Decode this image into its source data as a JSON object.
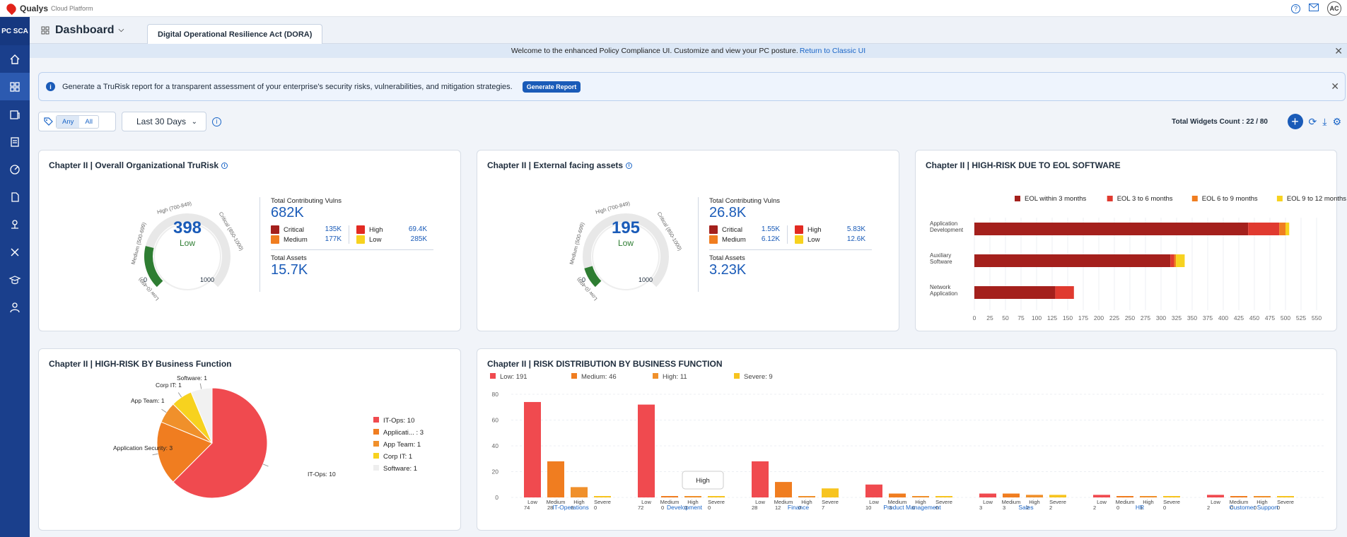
{
  "topbar": {
    "brand": "Qualys",
    "sub": "Cloud Platform",
    "avatar": "AC"
  },
  "sidebar": {
    "product": "PC SCA",
    "nav_icons": [
      "home-icon",
      "dashboard-icon",
      "assets-icon",
      "reports-icon",
      "scans-icon",
      "policies-icon",
      "network-icon",
      "tools-icon",
      "learning-icon",
      "user-icon"
    ]
  },
  "header": {
    "title": "Dashboard",
    "tab": "Digital Operational Resilience Act (DORA)"
  },
  "banner": {
    "text": "Welcome to the enhanced Policy Compliance UI. Customize and view your PC posture.",
    "link": "Return to Classic UI"
  },
  "info": {
    "text": "Generate a TruRisk report for a transparent assessment of your enterprise's security risks, vulnerabilities, and mitigation strategies.",
    "button": "Generate Report"
  },
  "filters": {
    "any": "Any",
    "all": "All",
    "range": "Last 30 Days"
  },
  "widgets": {
    "count_label": "Total Widgets Count : 22 / 80"
  },
  "colors": {
    "critical": "#a4201c",
    "high": "#e22a22",
    "medium": "#f07d20",
    "low": "#f7d21f",
    "severe": "#f7c41f",
    "lowrisk": "#f04a4f"
  },
  "card1": {
    "title": "Chapter II | Overall Organizational TruRisk",
    "score": "398",
    "score_label": "Low",
    "gauge_min": "0",
    "gauge_max": "1000",
    "score_fraction": 0.398,
    "arc_labels": {
      "low": "Low (0-499)",
      "medium": "Medium (500-699)",
      "high": "High (700-849)",
      "critical": "Critical (850-1000)"
    },
    "vulns_label": "Total Contributing Vulns",
    "vulns": "682K",
    "rows": [
      {
        "name": "Critical",
        "value": "135K"
      },
      {
        "name": "High",
        "value": "69.4K"
      },
      {
        "name": "Medium",
        "value": "177K"
      },
      {
        "name": "Low",
        "value": "285K"
      }
    ],
    "assets_label": "Total Assets",
    "assets": "15.7K"
  },
  "card2": {
    "title": "Chapter II | External facing assets",
    "score": "195",
    "score_label": "Low",
    "gauge_min": "0",
    "gauge_max": "1000",
    "score_fraction": 0.195,
    "arc_labels": {
      "low": "Low (0-499)",
      "medium": "Medium (500-699)",
      "high": "High (700-849)",
      "critical": "Critical (850-1000)"
    },
    "vulns_label": "Total Contributing Vulns",
    "vulns": "26.8K",
    "rows": [
      {
        "name": "Critical",
        "value": "1.55K"
      },
      {
        "name": "High",
        "value": "5.83K"
      },
      {
        "name": "Medium",
        "value": "6.12K"
      },
      {
        "name": "Low",
        "value": "12.6K"
      }
    ],
    "assets_label": "Total Assets",
    "assets": "3.23K"
  },
  "card3": {
    "title": "Chapter II | HIGH-RISK DUE TO EOL SOFTWARE"
  },
  "card4": {
    "title": "Chapter II | HIGH-RISK BY Business Function"
  },
  "card5": {
    "title": "Chapter II | RISK DISTRIBUTION BY BUSINESS FUNCTION",
    "tooltip": "High"
  },
  "chart_data": [
    {
      "type": "bar",
      "orientation": "horizontal",
      "stacked": true,
      "categories": [
        "Application Development",
        "Auxiliary Software",
        "Network Application"
      ],
      "series": [
        {
          "name": "EOL within 3 months",
          "values": [
            440,
            315,
            130
          ]
        },
        {
          "name": "EOL 3 to 6 months",
          "values": [
            50,
            6,
            30
          ]
        },
        {
          "name": "EOL 6 to 9 months",
          "values": [
            10,
            3,
            0
          ]
        },
        {
          "name": "EOL 9 to 12 months",
          "values": [
            6,
            14,
            0
          ]
        }
      ],
      "xlim": [
        0,
        550
      ],
      "xticks": [
        "0",
        "25",
        "50",
        "75",
        "100",
        "125",
        "150",
        "175",
        "200",
        "225",
        "250",
        "275",
        "300",
        "325",
        "350",
        "375",
        "400",
        "425",
        "450",
        "475",
        "500",
        "525",
        "550"
      ],
      "legend": "top-right"
    },
    {
      "type": "pie",
      "slices": [
        {
          "label": "IT-Ops",
          "value": 10,
          "callout": "IT-Ops: 10",
          "legend": "IT-Ops: 10"
        },
        {
          "label": "Application Security",
          "value": 3,
          "callout": "Application Security: 3",
          "legend": "Applicati... : 3"
        },
        {
          "label": "App Team",
          "value": 1,
          "callout": "App Team: 1",
          "legend": "App Team: 1"
        },
        {
          "label": "Corp IT",
          "value": 1,
          "callout": "Corp IT: 1",
          "legend": "Corp IT: 1"
        },
        {
          "label": "Software",
          "value": 1,
          "callout": "Software: 1",
          "legend": "Software: 1"
        }
      ],
      "colors": [
        "#f04a4f",
        "#f07d20",
        "#f0902b",
        "#f7d21f",
        "#f1f1f1"
      ],
      "legend": "right"
    },
    {
      "type": "bar",
      "series_legend": [
        {
          "name": "Low: 191",
          "color": "#f04a4f"
        },
        {
          "name": "Medium: 46",
          "color": "#f07d20"
        },
        {
          "name": "High: 11",
          "color": "#f0902b"
        },
        {
          "name": "Severe: 9",
          "color": "#f7c41f"
        }
      ],
      "ylim": [
        0,
        80
      ],
      "yticks": [
        "0",
        "20",
        "40",
        "60",
        "80"
      ],
      "groups": [
        {
          "name": "IT-Operations",
          "values": [
            74,
            28,
            8,
            0
          ]
        },
        {
          "name": "Development",
          "values": [
            72,
            0,
            0,
            0
          ]
        },
        {
          "name": "Finance",
          "values": [
            28,
            12,
            0,
            7
          ]
        },
        {
          "name": "Product Management",
          "values": [
            10,
            3,
            0,
            0
          ]
        },
        {
          "name": "Sales",
          "values": [
            3,
            3,
            2,
            2
          ]
        },
        {
          "name": "HR",
          "values": [
            2,
            0,
            1,
            0
          ]
        },
        {
          "name": "Customer Support",
          "values": [
            2,
            0,
            0,
            0
          ]
        }
      ],
      "bar_labels": [
        "Low",
        "Medium",
        "High",
        "Severe"
      ]
    }
  ]
}
